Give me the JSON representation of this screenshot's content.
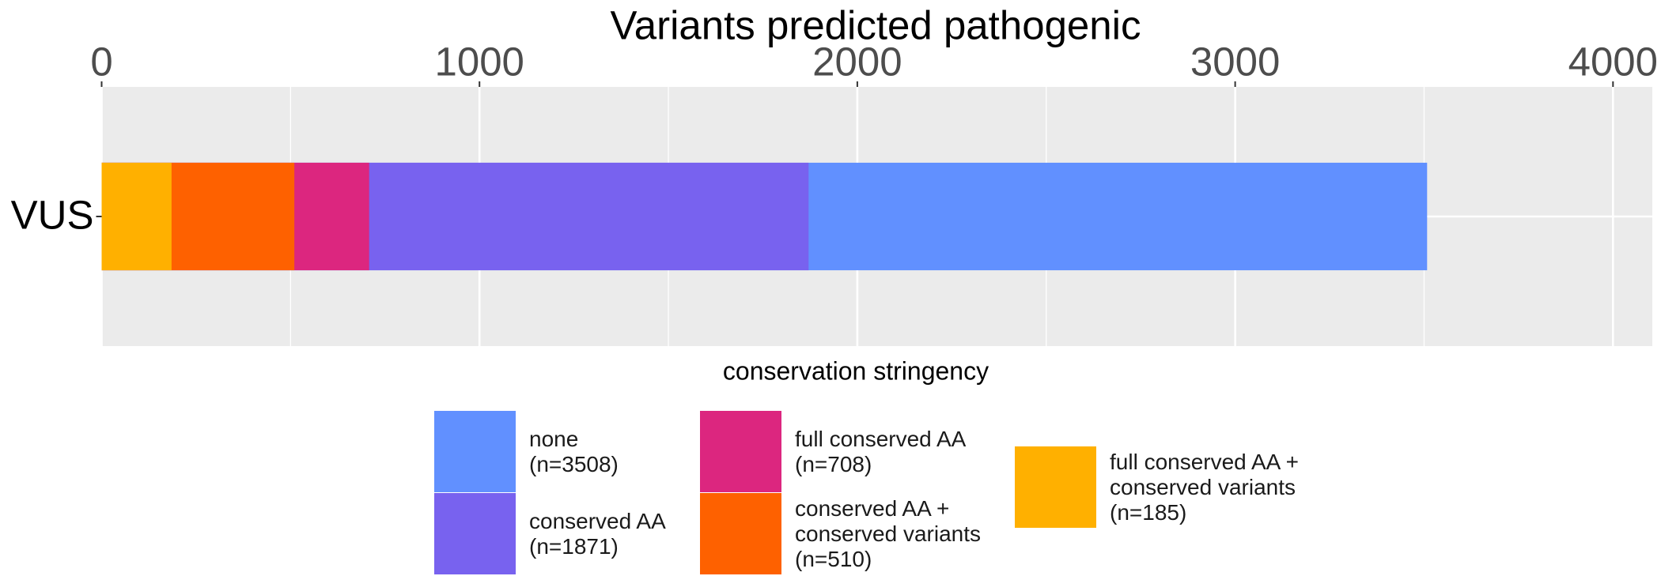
{
  "chart_data": {
    "type": "bar",
    "orientation": "horizontal",
    "overlap": true,
    "title": "Variants predicted pathogenic",
    "categories": [
      "VUS"
    ],
    "series": [
      {
        "name": "none\n(n=3508)",
        "color": "#6190ff",
        "values": [
          3508
        ]
      },
      {
        "name": "conserved AA\n(n=1871)",
        "color": "#7862ef",
        "values": [
          1871
        ]
      },
      {
        "name": "full conserved AA\n(n=708)",
        "color": "#dc267f",
        "values": [
          708
        ]
      },
      {
        "name": "conserved AA +\nconserved variants\n(n=510)",
        "color": "#fe6100",
        "values": [
          510
        ]
      },
      {
        "name": "full conserved AA +\nconserved variants\n(n=185)",
        "color": "#ffb000",
        "values": [
          185
        ]
      }
    ],
    "legend_title": "conservation stringency",
    "xlim": [
      0,
      4104
    ],
    "xticks": [
      0,
      1000,
      2000,
      3000,
      4000
    ],
    "minor_xticks": [
      500,
      1500,
      2500,
      3500
    ],
    "x_axis_position": "top",
    "grid": true
  }
}
